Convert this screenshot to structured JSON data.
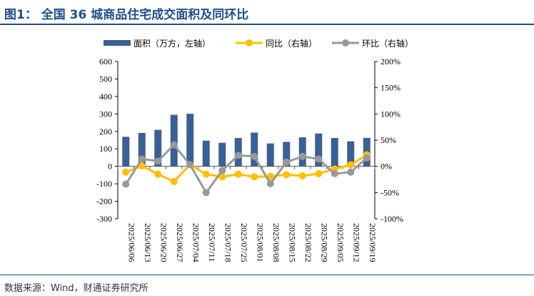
{
  "title": "图1：  全国 36 城商品住宅成交面积及同环比",
  "source": "数据来源：Wind，财通证券研究所",
  "chart_data": {
    "type": "bar+line",
    "categories": [
      "2025/06/06",
      "2025/06/13",
      "2025/06/20",
      "2025/06/27",
      "2025/07/04",
      "2025/07/11",
      "2025/07/18",
      "2025/07/25",
      "2025/08/01",
      "2025/08/08",
      "2025/08/15",
      "2025/08/22",
      "2025/08/29",
      "2025/09/05",
      "2025/09/12",
      "2025/09/19"
    ],
    "series": [
      {
        "name": "面积（万方，左轴）",
        "type": "bar",
        "axis": "left",
        "color": "#3a6094",
        "values": [
          169,
          191,
          209,
          295,
          301,
          147,
          135,
          162,
          193,
          131,
          140,
          166,
          188,
          162,
          143,
          163
        ]
      },
      {
        "name": "同比（右轴）",
        "type": "line",
        "axis": "right",
        "color": "#ffc000",
        "values": [
          -11,
          1,
          -15,
          -29,
          3,
          -15,
          -20,
          -15,
          -20,
          -19,
          -16,
          -18,
          -14,
          -5,
          3,
          22
        ]
      },
      {
        "name": "环比（右轴）",
        "type": "line",
        "axis": "right",
        "color": "#999999",
        "values": [
          -34,
          14,
          10,
          41,
          3,
          -50,
          -8,
          21,
          19,
          -33,
          8,
          19,
          14,
          -14,
          -11,
          16
        ]
      }
    ],
    "left_ylim": [
      -300,
      600
    ],
    "left_ticks": [
      "-300",
      "-200",
      "-100",
      "0",
      "100",
      "200",
      "300",
      "400",
      "500",
      "600"
    ],
    "right_ylim": [
      -100,
      200
    ],
    "right_ticks": [
      "-100%",
      "-50%",
      "0%",
      "50%",
      "100%",
      "150%",
      "200%"
    ],
    "legend": "top",
    "grid": false
  }
}
